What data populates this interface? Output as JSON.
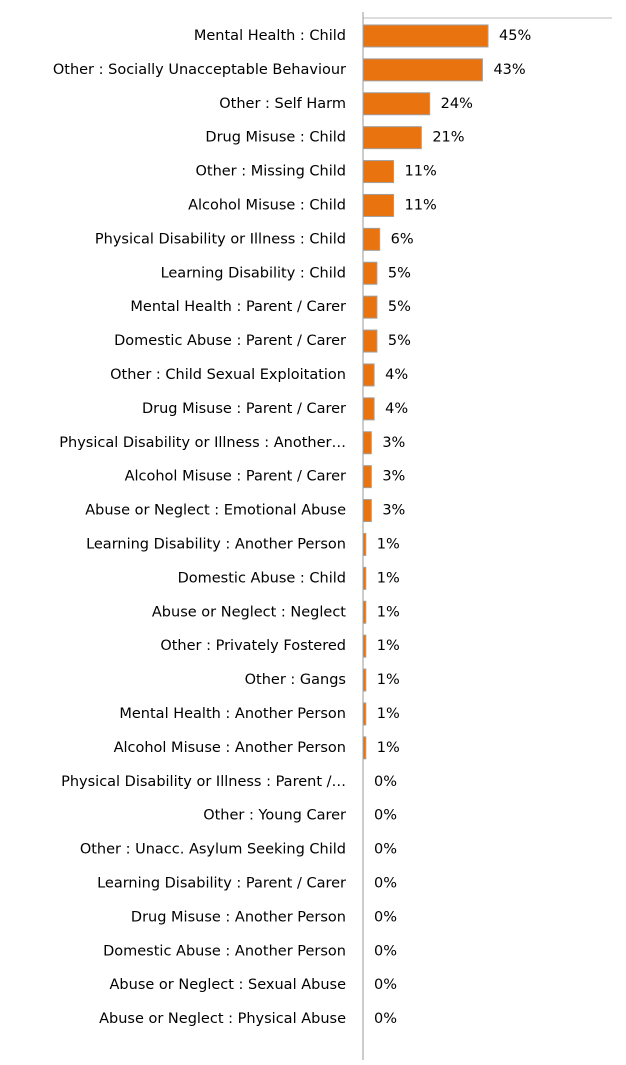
{
  "chart_data": {
    "type": "bar",
    "orientation": "horizontal",
    "categories": [
      "Mental Health : Child",
      "Other : Socially Unacceptable Behaviour",
      "Other : Self Harm",
      "Drug Misuse : Child",
      "Other : Missing Child",
      "Alcohol Misuse : Child",
      "Physical Disability or Illness : Child",
      "Learning Disability : Child",
      "Mental Health : Parent / Carer",
      "Domestic Abuse : Parent / Carer",
      "Other : Child Sexual Exploitation",
      "Drug Misuse : Parent / Carer",
      "Physical Disability or Illness : Another…",
      "Alcohol Misuse : Parent / Carer",
      "Abuse or Neglect : Emotional Abuse",
      "Learning Disability : Another Person",
      "Domestic Abuse : Child",
      "Abuse or Neglect : Neglect",
      "Other : Privately Fostered",
      "Other : Gangs",
      "Mental Health : Another Person",
      "Alcohol Misuse : Another Person",
      "Physical Disability or Illness : Parent /…",
      "Other : Young Carer",
      "Other : Unacc. Asylum Seeking Child",
      "Learning Disability : Parent / Carer",
      "Drug Misuse : Another Person",
      "Domestic Abuse : Another Person",
      "Abuse or Neglect : Sexual Abuse",
      "Abuse or Neglect : Physical Abuse"
    ],
    "values": [
      45,
      43,
      24,
      21,
      11,
      11,
      6,
      5,
      5,
      5,
      4,
      4,
      3,
      3,
      3,
      1,
      1,
      1,
      1,
      1,
      1,
      1,
      0,
      0,
      0,
      0,
      0,
      0,
      0,
      0
    ],
    "value_labels": [
      "45%",
      "43%",
      "24%",
      "21%",
      "11%",
      "11%",
      "6%",
      "5%",
      "5%",
      "5%",
      "4%",
      "4%",
      "3%",
      "3%",
      "3%",
      "1%",
      "1%",
      "1%",
      "1%",
      "1%",
      "1%",
      "1%",
      "0%",
      "0%",
      "0%",
      "0%",
      "0%",
      "0%",
      "0%",
      "0%"
    ],
    "color": "#e8730f",
    "xlim": [
      0,
      90
    ]
  }
}
